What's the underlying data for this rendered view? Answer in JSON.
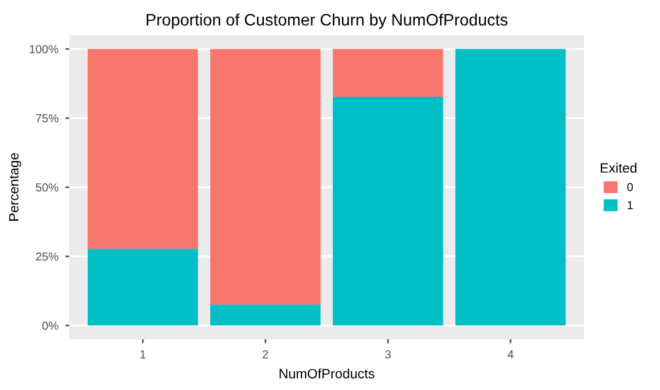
{
  "chart_data": {
    "type": "bar",
    "title": "Proportion of Customer Churn by NumOfProducts",
    "xlabel": "NumOfProducts",
    "ylabel": "Percentage",
    "legend_title": "Exited",
    "categories": [
      "1",
      "2",
      "3",
      "4"
    ],
    "stacked": true,
    "series": [
      {
        "name": "1",
        "color": "#00bfc4",
        "values": [
          27.7,
          7.6,
          82.7,
          100
        ]
      },
      {
        "name": "0",
        "color": "#f8766d",
        "values": [
          72.3,
          92.4,
          17.3,
          0
        ]
      }
    ],
    "ylim": [
      -5,
      105
    ],
    "yticks": [
      {
        "value": 0,
        "label": "0%"
      },
      {
        "value": 25,
        "label": "25%"
      },
      {
        "value": 50,
        "label": "50%"
      },
      {
        "value": 75,
        "label": "75%"
      },
      {
        "value": 100,
        "label": "100%"
      }
    ],
    "grid": "y",
    "legend": "right"
  }
}
